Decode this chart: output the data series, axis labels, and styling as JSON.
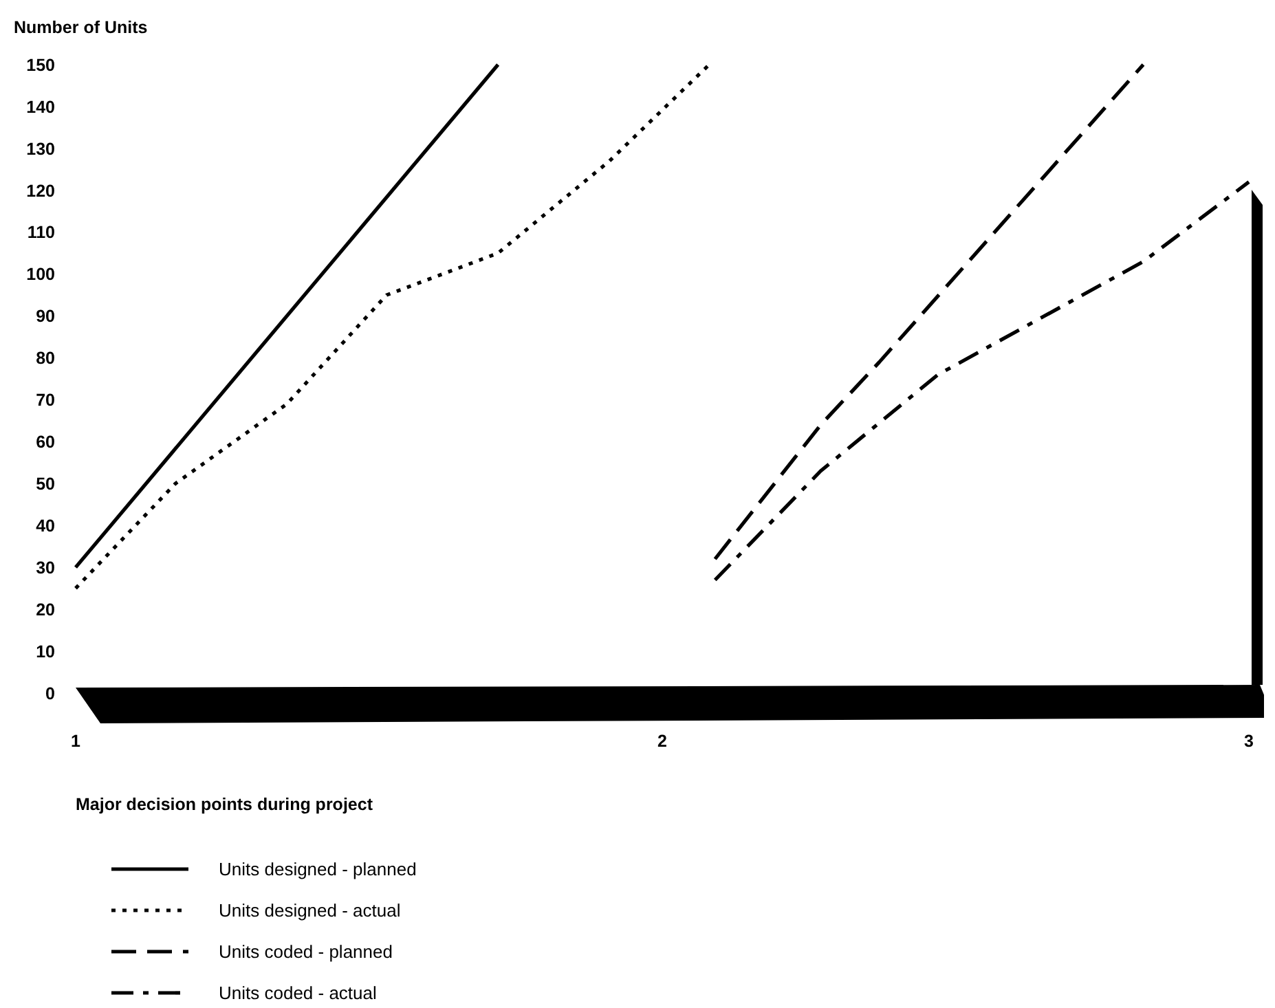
{
  "chart_data": {
    "type": "line",
    "ylabel": "Number of Units",
    "xlabel": "Major decision points during project",
    "xlim": [
      1,
      3
    ],
    "xticks": [
      1,
      2,
      3
    ],
    "ylim": [
      0,
      150
    ],
    "yticks": [
      0,
      10,
      20,
      30,
      40,
      50,
      60,
      70,
      80,
      90,
      100,
      110,
      120,
      130,
      140,
      150
    ],
    "grid": false,
    "legend": "bottom left",
    "marker": "none",
    "series": [
      {
        "name": "Units designed - planned",
        "color": "#000000",
        "line_style": "solid",
        "x": [
          1,
          1.72
        ],
        "values": [
          30,
          150
        ]
      },
      {
        "name": "Units designed - actual",
        "color": "#000000",
        "line_style": "dotted",
        "x": [
          1,
          1.17,
          1.36,
          1.53,
          1.72,
          1.91,
          2.08
        ],
        "values": [
          25,
          50,
          69,
          95,
          105,
          127,
          150
        ]
      },
      {
        "name": "Units coded - planned",
        "color": "#000000",
        "line_style": "dashed",
        "x": [
          2.09,
          2.27,
          2.37,
          2.82
        ],
        "values": [
          32,
          64,
          79,
          150
        ]
      },
      {
        "name": "Units coded - actual",
        "color": "#000000",
        "line_style": "dashdot",
        "x": [
          2.09,
          2.27,
          2.47,
          2.82,
          3
        ],
        "values": [
          27,
          53,
          76,
          103,
          122
        ]
      }
    ]
  }
}
